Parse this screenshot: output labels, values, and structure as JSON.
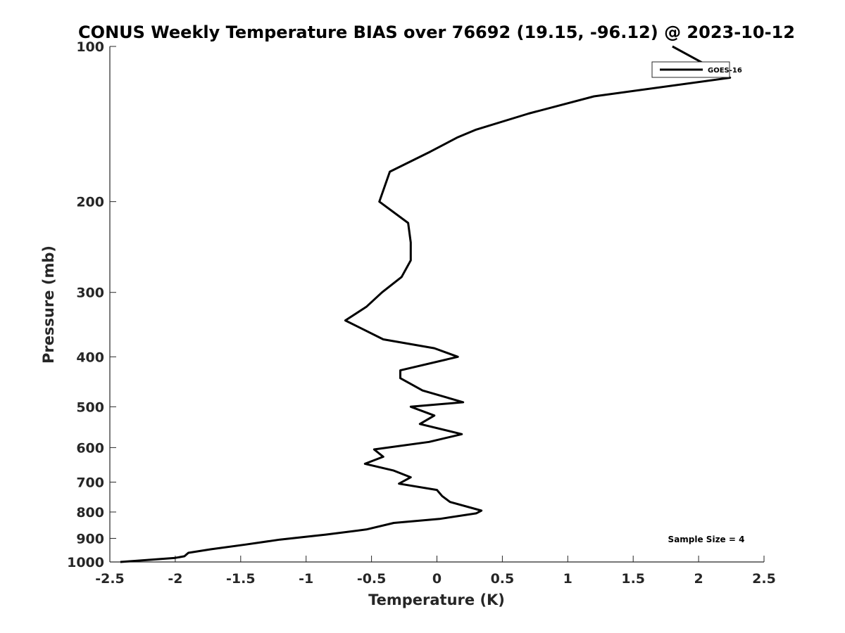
{
  "chart_data": {
    "type": "line",
    "title": "CONUS Weekly Temperature BIAS over 76692 (19.15, -96.12) @ 2023-10-12",
    "xlabel": "Temperature (K)",
    "ylabel": "Pressure (mb)",
    "xlim": [
      -2.5,
      2.5
    ],
    "ylim": [
      100,
      1000
    ],
    "y_scale": "log",
    "y_reversed": true,
    "xticks": [
      "-2.5",
      "-2",
      "-1.5",
      "-1",
      "-0.5",
      "0",
      "0.5",
      "1",
      "1.5",
      "2",
      "2.5"
    ],
    "yticks": [
      "100",
      "200",
      "300",
      "400",
      "500",
      "600",
      "700",
      "800",
      "900",
      "1000"
    ],
    "grid": false,
    "legend_position": "top-right",
    "annotation": "Sample Size = 4",
    "series": [
      {
        "name": "GOES-16",
        "color": "#000000",
        "points": [
          [
            1.8,
            100
          ],
          [
            2.24,
            115
          ],
          [
            1.2,
            125
          ],
          [
            0.7,
            135
          ],
          [
            0.3,
            145
          ],
          [
            0.16,
            150
          ],
          [
            -0.05,
            160
          ],
          [
            -0.36,
            175
          ],
          [
            -0.44,
            200
          ],
          [
            -0.22,
            220
          ],
          [
            -0.2,
            240
          ],
          [
            -0.2,
            260
          ],
          [
            -0.27,
            280
          ],
          [
            -0.42,
            300
          ],
          [
            -0.54,
            320
          ],
          [
            -0.7,
            340
          ],
          [
            -0.41,
            370
          ],
          [
            -0.02,
            385
          ],
          [
            0.16,
            400
          ],
          [
            -0.28,
            425
          ],
          [
            -0.28,
            440
          ],
          [
            -0.11,
            465
          ],
          [
            0.2,
            490
          ],
          [
            -0.2,
            500
          ],
          [
            -0.02,
            520
          ],
          [
            -0.13,
            540
          ],
          [
            0.19,
            565
          ],
          [
            -0.06,
            585
          ],
          [
            -0.48,
            605
          ],
          [
            -0.41,
            625
          ],
          [
            -0.55,
            645
          ],
          [
            -0.33,
            665
          ],
          [
            -0.2,
            685
          ],
          [
            -0.29,
            705
          ],
          [
            0.0,
            725
          ],
          [
            0.04,
            745
          ],
          [
            0.1,
            765
          ],
          [
            0.34,
            795
          ],
          [
            0.3,
            805
          ],
          [
            0.02,
            825
          ],
          [
            -0.33,
            840
          ],
          [
            -0.54,
            865
          ],
          [
            -0.85,
            885
          ],
          [
            -1.2,
            905
          ],
          [
            -1.46,
            925
          ],
          [
            -1.73,
            945
          ],
          [
            -1.9,
            960
          ],
          [
            -1.93,
            975
          ],
          [
            -2.0,
            982
          ],
          [
            -2.42,
            1000
          ]
        ]
      }
    ]
  }
}
